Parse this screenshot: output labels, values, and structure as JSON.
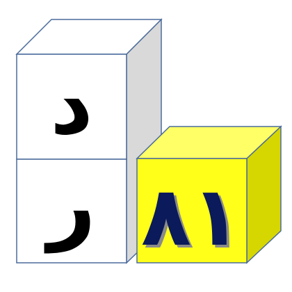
{
  "blocks": {
    "top_letter": "د",
    "bottom_letter": "ر",
    "number": "٨١"
  },
  "icons": {
    "white_block_top": "cube-icon",
    "white_block_bottom": "cube-icon",
    "yellow_block": "cube-icon"
  },
  "colors": {
    "outline": "#4a6a9c",
    "white_face": "#ffffff",
    "white_side": "#d9d9d9",
    "yellow_front": "#ffff1a",
    "yellow_top": "#ffff66",
    "yellow_side": "#d6d600",
    "number_fill": "#0a1a5a",
    "number_shadow": "#8a8a8a",
    "letter": "#000000"
  }
}
